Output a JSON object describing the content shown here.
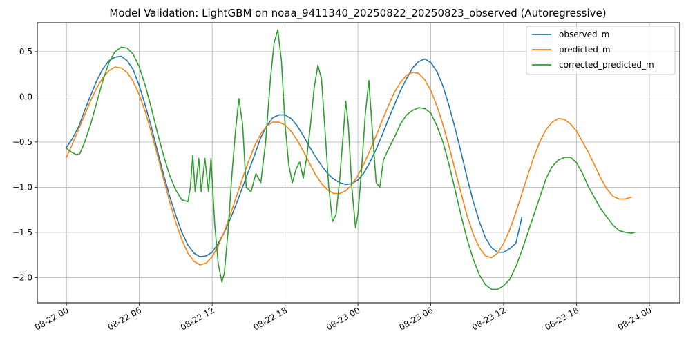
{
  "chart_data": {
    "type": "line",
    "title": "Model Validation: LightGBM on noaa_9411340_20250822_20250823_observed (Autoregressive)",
    "xlabel": "",
    "ylabel": "",
    "x_tick_labels": [
      "08-22 00",
      "08-22 06",
      "08-22 12",
      "08-22 18",
      "08-23 00",
      "08-23 06",
      "08-23 12",
      "08-23 18",
      "08-24 00"
    ],
    "x_ticks_hours": [
      0,
      6,
      12,
      18,
      24,
      30,
      36,
      42,
      48
    ],
    "y_tick_labels": [
      "0.5",
      "0.0",
      "−0.5",
      "−1.0",
      "−1.5",
      "−2.0"
    ],
    "y_ticks": [
      0.5,
      0.0,
      -0.5,
      -1.0,
      -1.5,
      -2.0
    ],
    "xlim_hours": [
      -2.4,
      50.5
    ],
    "ylim": [
      -2.28,
      0.82
    ],
    "grid": true,
    "legend_position": "upper right",
    "series": [
      {
        "name": "observed_m",
        "color": "#1f77b4",
        "points": [
          [
            0,
            -0.56
          ],
          [
            0.5,
            -0.46
          ],
          [
            1,
            -0.33
          ],
          [
            1.5,
            -0.15
          ],
          [
            2,
            0.02
          ],
          [
            2.5,
            0.18
          ],
          [
            3,
            0.31
          ],
          [
            3.5,
            0.4
          ],
          [
            4,
            0.44
          ],
          [
            4.5,
            0.45
          ],
          [
            5,
            0.4
          ],
          [
            5.5,
            0.3
          ],
          [
            6,
            0.12
          ],
          [
            6.5,
            -0.1
          ],
          [
            7,
            -0.34
          ],
          [
            7.5,
            -0.6
          ],
          [
            8,
            -0.86
          ],
          [
            8.5,
            -1.1
          ],
          [
            9,
            -1.31
          ],
          [
            9.5,
            -1.5
          ],
          [
            10,
            -1.64
          ],
          [
            10.5,
            -1.73
          ],
          [
            11,
            -1.77
          ],
          [
            11.5,
            -1.76
          ],
          [
            12,
            -1.72
          ],
          [
            12.5,
            -1.62
          ],
          [
            13,
            -1.5
          ],
          [
            13.5,
            -1.35
          ],
          [
            14,
            -1.18
          ],
          [
            14.5,
            -1.0
          ],
          [
            15,
            -0.82
          ],
          [
            15.5,
            -0.64
          ],
          [
            16,
            -0.45
          ],
          [
            16.5,
            -0.32
          ],
          [
            17,
            -0.23
          ],
          [
            17.5,
            -0.2
          ],
          [
            18,
            -0.2
          ],
          [
            18.5,
            -0.24
          ],
          [
            19,
            -0.32
          ],
          [
            19.5,
            -0.43
          ],
          [
            20,
            -0.55
          ],
          [
            20.5,
            -0.66
          ],
          [
            21,
            -0.76
          ],
          [
            21.5,
            -0.85
          ],
          [
            22,
            -0.91
          ],
          [
            22.5,
            -0.95
          ],
          [
            23,
            -0.97
          ],
          [
            23.5,
            -0.96
          ],
          [
            24,
            -0.92
          ],
          [
            24.5,
            -0.84
          ],
          [
            25,
            -0.72
          ],
          [
            25.5,
            -0.58
          ],
          [
            26,
            -0.42
          ],
          [
            26.5,
            -0.25
          ],
          [
            27,
            -0.09
          ],
          [
            27.5,
            0.07
          ],
          [
            28,
            0.2
          ],
          [
            28.5,
            0.32
          ],
          [
            29,
            0.39
          ],
          [
            29.5,
            0.42
          ],
          [
            30,
            0.38
          ],
          [
            30.5,
            0.28
          ],
          [
            31,
            0.12
          ],
          [
            31.5,
            -0.1
          ],
          [
            32,
            -0.35
          ],
          [
            32.5,
            -0.62
          ],
          [
            33,
            -0.9
          ],
          [
            33.5,
            -1.16
          ],
          [
            34,
            -1.38
          ],
          [
            34.5,
            -1.56
          ],
          [
            35,
            -1.67
          ],
          [
            35.5,
            -1.72
          ],
          [
            36,
            -1.72
          ],
          [
            36.5,
            -1.68
          ],
          [
            37,
            -1.62
          ],
          [
            37.3,
            -1.45
          ],
          [
            37.5,
            -1.33
          ]
        ]
      },
      {
        "name": "predicted_m",
        "color": "#ff7f0e",
        "points": [
          [
            0,
            -0.67
          ],
          [
            0.5,
            -0.52
          ],
          [
            1,
            -0.36
          ],
          [
            1.5,
            -0.2
          ],
          [
            2,
            -0.04
          ],
          [
            2.5,
            0.1
          ],
          [
            3,
            0.21
          ],
          [
            3.5,
            0.29
          ],
          [
            4,
            0.33
          ],
          [
            4.5,
            0.32
          ],
          [
            5,
            0.27
          ],
          [
            5.5,
            0.17
          ],
          [
            6,
            0.02
          ],
          [
            6.5,
            -0.17
          ],
          [
            7,
            -0.4
          ],
          [
            7.5,
            -0.65
          ],
          [
            8,
            -0.91
          ],
          [
            8.5,
            -1.16
          ],
          [
            9,
            -1.39
          ],
          [
            9.5,
            -1.58
          ],
          [
            10,
            -1.73
          ],
          [
            10.5,
            -1.82
          ],
          [
            11,
            -1.86
          ],
          [
            11.5,
            -1.84
          ],
          [
            12,
            -1.77
          ],
          [
            12.5,
            -1.65
          ],
          [
            13,
            -1.49
          ],
          [
            13.5,
            -1.3
          ],
          [
            14,
            -1.1
          ],
          [
            14.5,
            -0.9
          ],
          [
            15,
            -0.71
          ],
          [
            15.5,
            -0.54
          ],
          [
            16,
            -0.41
          ],
          [
            16.5,
            -0.32
          ],
          [
            17,
            -0.28
          ],
          [
            17.5,
            -0.28
          ],
          [
            18,
            -0.31
          ],
          [
            18.5,
            -0.38
          ],
          [
            19,
            -0.48
          ],
          [
            19.5,
            -0.6
          ],
          [
            20,
            -0.73
          ],
          [
            20.5,
            -0.86
          ],
          [
            21,
            -0.96
          ],
          [
            21.5,
            -1.03
          ],
          [
            22,
            -1.07
          ],
          [
            22.5,
            -1.07
          ],
          [
            23,
            -1.04
          ],
          [
            23.5,
            -0.97
          ],
          [
            24,
            -0.87
          ],
          [
            24.5,
            -0.74
          ],
          [
            25,
            -0.59
          ],
          [
            25.5,
            -0.43
          ],
          [
            26,
            -0.26
          ],
          [
            26.5,
            -0.1
          ],
          [
            27,
            0.05
          ],
          [
            27.5,
            0.16
          ],
          [
            28,
            0.24
          ],
          [
            28.5,
            0.27
          ],
          [
            29,
            0.26
          ],
          [
            29.5,
            0.19
          ],
          [
            30,
            0.07
          ],
          [
            30.5,
            -0.1
          ],
          [
            31,
            -0.31
          ],
          [
            31.5,
            -0.55
          ],
          [
            32,
            -0.81
          ],
          [
            32.5,
            -1.07
          ],
          [
            33,
            -1.32
          ],
          [
            33.5,
            -1.52
          ],
          [
            34,
            -1.67
          ],
          [
            34.5,
            -1.76
          ],
          [
            35,
            -1.78
          ],
          [
            35.5,
            -1.73
          ],
          [
            36,
            -1.62
          ],
          [
            36.5,
            -1.47
          ],
          [
            37,
            -1.28
          ],
          [
            37.5,
            -1.07
          ],
          [
            38,
            -0.86
          ],
          [
            38.5,
            -0.66
          ],
          [
            39,
            -0.49
          ],
          [
            39.5,
            -0.36
          ],
          [
            40,
            -0.28
          ],
          [
            40.5,
            -0.24
          ],
          [
            41,
            -0.25
          ],
          [
            41.5,
            -0.3
          ],
          [
            42,
            -0.38
          ],
          [
            42.5,
            -0.5
          ],
          [
            43,
            -0.62
          ],
          [
            43.5,
            -0.76
          ],
          [
            44,
            -0.9
          ],
          [
            44.5,
            -1.02
          ],
          [
            45,
            -1.1
          ],
          [
            45.5,
            -1.13
          ],
          [
            46,
            -1.13
          ],
          [
            46.5,
            -1.11
          ]
        ]
      },
      {
        "name": "corrected_predicted_m",
        "color": "#2ca02c",
        "points": [
          [
            0,
            -0.57
          ],
          [
            0.4,
            -0.61
          ],
          [
            0.8,
            -0.64
          ],
          [
            1.1,
            -0.63
          ],
          [
            1.5,
            -0.5
          ],
          [
            2,
            -0.3
          ],
          [
            2.5,
            -0.06
          ],
          [
            3,
            0.18
          ],
          [
            3.5,
            0.38
          ],
          [
            4,
            0.5
          ],
          [
            4.5,
            0.55
          ],
          [
            5,
            0.54
          ],
          [
            5.5,
            0.47
          ],
          [
            6,
            0.33
          ],
          [
            6.5,
            0.12
          ],
          [
            7,
            -0.13
          ],
          [
            7.5,
            -0.4
          ],
          [
            8,
            -0.65
          ],
          [
            8.5,
            -0.87
          ],
          [
            9,
            -1.03
          ],
          [
            9.5,
            -1.14
          ],
          [
            10,
            -1.16
          ],
          [
            10.2,
            -1.0
          ],
          [
            10.4,
            -0.65
          ],
          [
            10.6,
            -1.05
          ],
          [
            10.9,
            -0.68
          ],
          [
            11.1,
            -1.05
          ],
          [
            11.4,
            -0.68
          ],
          [
            11.7,
            -1.05
          ],
          [
            11.9,
            -0.68
          ],
          [
            12.2,
            -1.4
          ],
          [
            12.5,
            -1.85
          ],
          [
            12.8,
            -2.05
          ],
          [
            13.0,
            -1.95
          ],
          [
            13.3,
            -1.5
          ],
          [
            13.6,
            -0.9
          ],
          [
            13.9,
            -0.4
          ],
          [
            14.2,
            -0.02
          ],
          [
            14.5,
            -0.3
          ],
          [
            14.8,
            -1.0
          ],
          [
            15.2,
            -1.05
          ],
          [
            15.6,
            -0.85
          ],
          [
            16.0,
            -0.95
          ],
          [
            16.4,
            -0.5
          ],
          [
            16.8,
            0.2
          ],
          [
            17.1,
            0.6
          ],
          [
            17.4,
            0.74
          ],
          [
            17.7,
            0.4
          ],
          [
            18.0,
            -0.3
          ],
          [
            18.3,
            -0.75
          ],
          [
            18.6,
            -0.95
          ],
          [
            18.9,
            -0.8
          ],
          [
            19.2,
            -0.72
          ],
          [
            19.5,
            -0.9
          ],
          [
            19.8,
            -0.65
          ],
          [
            20.1,
            -0.3
          ],
          [
            20.4,
            0.1
          ],
          [
            20.7,
            0.35
          ],
          [
            21.0,
            0.2
          ],
          [
            21.3,
            -0.4
          ],
          [
            21.6,
            -1.0
          ],
          [
            21.9,
            -1.38
          ],
          [
            22.2,
            -1.3
          ],
          [
            22.5,
            -0.9
          ],
          [
            22.8,
            -0.4
          ],
          [
            23.0,
            -0.05
          ],
          [
            23.2,
            -0.3
          ],
          [
            23.5,
            -1.0
          ],
          [
            23.8,
            -1.45
          ],
          [
            24.0,
            -1.3
          ],
          [
            24.3,
            -0.8
          ],
          [
            24.6,
            -0.2
          ],
          [
            24.9,
            0.18
          ],
          [
            25.2,
            -0.4
          ],
          [
            25.5,
            -0.95
          ],
          [
            25.8,
            -1.0
          ],
          [
            26.1,
            -0.7
          ],
          [
            26.5,
            -0.58
          ],
          [
            27,
            -0.45
          ],
          [
            27.5,
            -0.3
          ],
          [
            28,
            -0.2
          ],
          [
            28.5,
            -0.15
          ],
          [
            29,
            -0.12
          ],
          [
            29.5,
            -0.13
          ],
          [
            30,
            -0.18
          ],
          [
            30.5,
            -0.32
          ],
          [
            31,
            -0.5
          ],
          [
            31.5,
            -0.75
          ],
          [
            32,
            -1.03
          ],
          [
            32.5,
            -1.32
          ],
          [
            33,
            -1.58
          ],
          [
            33.5,
            -1.8
          ],
          [
            34,
            -1.97
          ],
          [
            34.5,
            -2.08
          ],
          [
            35,
            -2.13
          ],
          [
            35.5,
            -2.13
          ],
          [
            36,
            -2.09
          ],
          [
            36.5,
            -2.02
          ],
          [
            37,
            -1.88
          ],
          [
            37.5,
            -1.7
          ],
          [
            38,
            -1.5
          ],
          [
            38.5,
            -1.3
          ],
          [
            39,
            -1.1
          ],
          [
            39.5,
            -0.9
          ],
          [
            40,
            -0.77
          ],
          [
            40.5,
            -0.7
          ],
          [
            41,
            -0.67
          ],
          [
            41.5,
            -0.67
          ],
          [
            42,
            -0.73
          ],
          [
            42.5,
            -0.85
          ],
          [
            43,
            -1.0
          ],
          [
            43.5,
            -1.12
          ],
          [
            44,
            -1.24
          ],
          [
            44.5,
            -1.33
          ],
          [
            45,
            -1.42
          ],
          [
            45.5,
            -1.48
          ],
          [
            46,
            -1.5
          ],
          [
            46.5,
            -1.51
          ],
          [
            46.8,
            -1.5
          ]
        ]
      }
    ]
  }
}
